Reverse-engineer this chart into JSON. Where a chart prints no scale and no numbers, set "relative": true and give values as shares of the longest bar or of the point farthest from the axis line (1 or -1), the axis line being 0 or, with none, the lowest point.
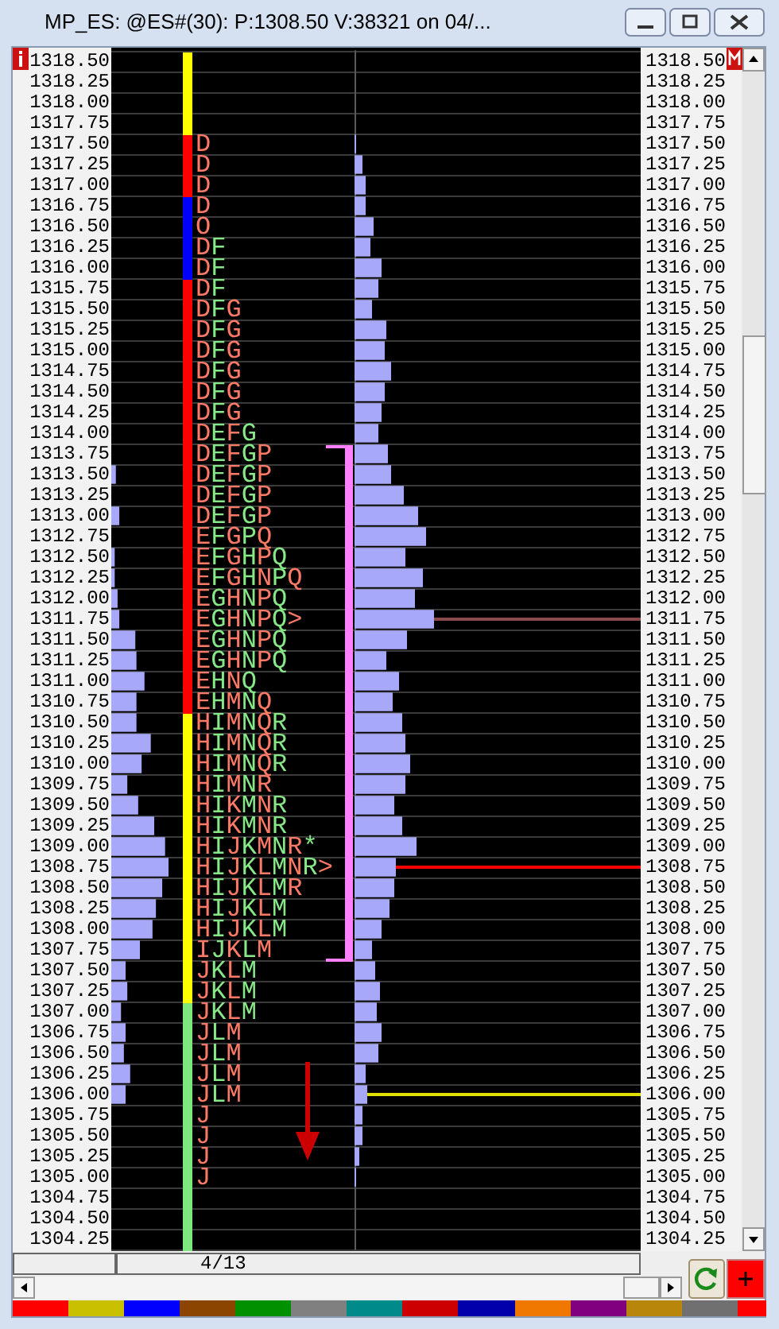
{
  "chart_data": [
    {
      "type": "bar",
      "title": "MP_ES: @ES#(30): P:1308.50 V:38321 on 04/...",
      "orientation": "horizontal",
      "relative": true,
      "grid": "y",
      "categories": [
        "1318.50",
        "1318.25",
        "1318.00",
        "1317.75",
        "1317.50",
        "1317.25",
        "1317.00",
        "1316.75",
        "1316.50",
        "1316.25",
        "1316.00",
        "1315.75",
        "1315.50",
        "1315.25",
        "1315.00",
        "1314.75",
        "1314.50",
        "1314.25",
        "1314.00",
        "1313.75",
        "1313.50",
        "1313.25",
        "1313.00",
        "1312.75",
        "1312.50",
        "1312.25",
        "1312.00",
        "1311.75",
        "1311.50",
        "1311.25",
        "1311.00",
        "1310.75",
        "1310.50",
        "1310.25",
        "1310.00",
        "1309.75",
        "1309.50",
        "1309.25",
        "1309.00",
        "1308.75",
        "1308.50",
        "1308.25",
        "1308.00",
        "1307.75",
        "1307.50",
        "1307.25",
        "1307.00",
        "1306.75",
        "1306.50",
        "1306.25",
        "1306.00",
        "1305.75",
        "1305.50",
        "1305.25",
        "1305.00",
        "1304.75",
        "1304.50",
        "1304.25"
      ],
      "color": "#a8a8f8",
      "values": [
        null,
        null,
        null,
        null,
        null,
        null,
        null,
        null,
        null,
        null,
        null,
        null,
        null,
        null,
        null,
        null,
        null,
        null,
        null,
        null,
        0.08,
        null,
        0.14,
        null,
        0.06,
        0.06,
        0.11,
        0.14,
        0.42,
        0.44,
        0.58,
        0.44,
        0.44,
        0.69,
        0.53,
        0.28,
        0.47,
        0.75,
        0.94,
        1,
        0.89,
        0.78,
        0.72,
        0.5,
        0.25,
        0.28,
        0.17,
        0.25,
        0.22,
        0.33,
        0.25,
        null,
        null,
        null,
        null,
        null,
        null,
        null
      ],
      "annotations": [
        "4/13"
      ]
    },
    {
      "type": "bar",
      "orientation": "horizontal",
      "relative": true,
      "grid": "y",
      "categories": [
        "1318.50",
        "1318.25",
        "1318.00",
        "1317.75",
        "1317.50",
        "1317.25",
        "1317.00",
        "1316.75",
        "1316.50",
        "1316.25",
        "1316.00",
        "1315.75",
        "1315.50",
        "1315.25",
        "1315.00",
        "1314.75",
        "1314.50",
        "1314.25",
        "1314.00",
        "1313.75",
        "1313.50",
        "1313.25",
        "1313.00",
        "1312.75",
        "1312.50",
        "1312.25",
        "1312.00",
        "1311.75",
        "1311.50",
        "1311.25",
        "1311.00",
        "1310.75",
        "1310.50",
        "1310.25",
        "1310.00",
        "1309.75",
        "1309.50",
        "1309.25",
        "1309.00",
        "1308.75",
        "1308.50",
        "1308.25",
        "1308.00",
        "1307.75",
        "1307.50",
        "1307.25",
        "1307.00",
        "1306.75",
        "1306.50",
        "1306.25",
        "1306.00",
        "1305.75",
        "1305.50",
        "1305.25",
        "1305.00",
        "1304.75",
        "1304.50",
        "1304.25"
      ],
      "color": "#a8a8f8",
      "values": [
        null,
        null,
        null,
        null,
        0.02,
        0.1,
        0.14,
        0.14,
        0.24,
        0.2,
        0.34,
        0.3,
        0.22,
        0.4,
        0.38,
        0.46,
        0.38,
        0.34,
        0.3,
        0.42,
        0.46,
        0.62,
        0.8,
        0.9,
        0.64,
        0.86,
        0.76,
        1,
        0.66,
        0.4,
        0.56,
        0.48,
        0.6,
        0.64,
        0.7,
        0.64,
        0.5,
        0.6,
        0.78,
        0.52,
        0.5,
        0.44,
        0.34,
        0.22,
        0.26,
        0.32,
        0.28,
        0.34,
        0.3,
        0.14,
        0.16,
        0.1,
        0.1,
        0.06,
        0.02,
        null,
        null,
        null
      ],
      "ref_lines": [
        {
          "axis": "y",
          "value": "1311.75",
          "color": "#8b4a4a"
        },
        {
          "axis": "y",
          "value": "1308.75",
          "color": "#ff0000"
        },
        {
          "axis": "y",
          "value": "1306.00",
          "color": "#e0e000"
        }
      ],
      "annotations": [
        "D",
        "D",
        "D",
        "D",
        "O",
        "DF",
        "DF",
        "DF",
        "DFG",
        "DFG",
        "DFG",
        "DFG",
        "DFG",
        "DFG",
        "DEFG",
        "DEFGP",
        "DEFGP",
        "DEFGP",
        "DEFGP",
        "EFGPQ",
        "EFGHPQ",
        "EFGHNPQ",
        "EGHNPQ",
        "EGHNPQ>",
        "EGHNPQ",
        "EGHNPQ",
        "EHNQ",
        "EHMNQ",
        "HIMNQR",
        "HIMNQR",
        "HIMNQR",
        "HIMNR",
        "HIKMNR",
        "HIKMNR",
        "HIJKMNR*",
        "HIJKLMNR>",
        "HIJKLMR",
        "HIJKLM",
        "HIJKLM",
        "IJKLM",
        "JKLM",
        "JKLM",
        "JKLM",
        "JLM",
        "JLM",
        "JLM",
        "JLM",
        "J",
        "J",
        "J",
        "J"
      ]
    }
  ]
}
